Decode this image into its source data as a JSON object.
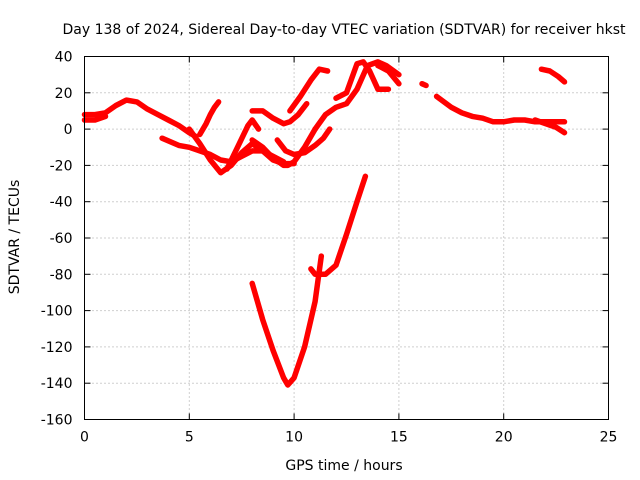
{
  "chart_data": {
    "type": "line",
    "title": "Day 138 of 2024, Sidereal Day-to-day VTEC variation (SDTVAR) for receiver hkst",
    "xlabel": "GPS time / hours",
    "ylabel": "SDTVAR / TECUs",
    "xlim": [
      0,
      25
    ],
    "ylim": [
      -160,
      40
    ],
    "xticks": [
      0,
      5,
      10,
      15,
      20,
      25
    ],
    "yticks": [
      -160,
      -140,
      -120,
      -100,
      -80,
      -60,
      -40,
      -20,
      0,
      20,
      40
    ],
    "xtick_labels": [
      "0",
      "5",
      "10",
      "15",
      "20",
      "25"
    ],
    "ytick_labels": [
      "-160",
      "-140",
      "-120",
      "-100",
      "-80",
      "-60",
      "-40",
      "-20",
      "0",
      "20",
      "40"
    ],
    "grid": true,
    "color": "#ff0000",
    "series": [
      {
        "name": "trace-1",
        "x": [
          0.0,
          0.5,
          1.0,
          1.5,
          2.0,
          2.5,
          3.0,
          3.5,
          4.0,
          4.5,
          5.0,
          5.3
        ],
        "y": [
          8,
          8,
          9,
          13,
          16,
          15,
          11,
          8,
          5,
          2,
          -2,
          -4
        ]
      },
      {
        "name": "trace-2",
        "x": [
          0.0,
          0.5,
          1.0
        ],
        "y": [
          5,
          5,
          7
        ]
      },
      {
        "name": "trace-3",
        "x": [
          5.0,
          5.5,
          6.0,
          6.5,
          7.0,
          7.5,
          8.0,
          8.5,
          9.0,
          9.5,
          10.0
        ],
        "y": [
          0,
          -8,
          -17,
          -24,
          -20,
          -13,
          -8,
          -12,
          -17,
          -19,
          -19
        ]
      },
      {
        "name": "trace-4",
        "x": [
          3.7,
          4.5,
          5.0,
          5.5,
          6.0,
          6.5,
          7.0,
          7.5,
          8.0,
          8.5,
          9.0,
          9.5
        ],
        "y": [
          -5,
          -9,
          -10,
          -12,
          -14,
          -17,
          -18,
          -15,
          -12,
          -12,
          -15,
          -18
        ]
      },
      {
        "name": "trace-5",
        "x": [
          5.5,
          5.8,
          6.0,
          6.2,
          6.4
        ],
        "y": [
          -3,
          3,
          8,
          12,
          15
        ]
      },
      {
        "name": "trace-6",
        "x": [
          6.8,
          7.3,
          7.8,
          8.0,
          8.3
        ],
        "y": [
          -22,
          -10,
          2,
          5,
          0
        ]
      },
      {
        "name": "trace-7",
        "x": [
          8.0,
          8.5,
          9.0,
          9.5,
          9.7,
          10.0,
          10.5,
          11.0
        ],
        "y": [
          -6,
          -10,
          -16,
          -20,
          -20,
          -18,
          -10,
          0
        ]
      },
      {
        "name": "trace-8",
        "x": [
          8.0,
          8.5,
          9.0,
          9.5,
          9.8,
          10.2,
          10.6
        ],
        "y": [
          10,
          10,
          6,
          3,
          4,
          8,
          14
        ]
      },
      {
        "name": "trace-9",
        "x": [
          9.2,
          9.6,
          10.0,
          10.5,
          11.0,
          11.4,
          11.7
        ],
        "y": [
          -6,
          -12,
          -14,
          -13,
          -9,
          -5,
          0
        ]
      },
      {
        "name": "trace-10",
        "x": [
          9.8,
          10.3,
          10.8,
          11.2,
          11.6
        ],
        "y": [
          10,
          18,
          27,
          33,
          32
        ]
      },
      {
        "name": "trace-11",
        "x": [
          11.0,
          11.5,
          12.0,
          12.5,
          13.0,
          13.5,
          14.0,
          14.4,
          15.0
        ],
        "y": [
          0,
          8,
          12,
          14,
          22,
          35,
          37,
          35,
          30
        ]
      },
      {
        "name": "trace-12",
        "x": [
          12.0,
          12.5,
          13.0,
          13.3,
          13.6,
          14.0,
          14.5
        ],
        "y": [
          17,
          20,
          36,
          37,
          32,
          22,
          22
        ]
      },
      {
        "name": "trace-13",
        "x": [
          14.0,
          14.5,
          15.0
        ],
        "y": [
          35,
          32,
          25
        ]
      },
      {
        "name": "trace-14",
        "x": [
          16.1,
          16.3
        ],
        "y": [
          25,
          24
        ]
      },
      {
        "name": "trace-15",
        "x": [
          16.8,
          17.5,
          18.0,
          18.5,
          19.0,
          19.5,
          20.0,
          20.5,
          21.0,
          21.5,
          22.0,
          22.5,
          22.9
        ],
        "y": [
          18,
          12,
          9,
          7,
          6,
          4,
          4,
          5,
          5,
          4,
          4,
          4,
          4
        ]
      },
      {
        "name": "trace-16",
        "x": [
          21.5,
          22.0,
          22.5,
          22.9
        ],
        "y": [
          5,
          3,
          1,
          -2
        ]
      },
      {
        "name": "trace-17",
        "x": [
          21.8,
          22.2,
          22.6,
          22.9
        ],
        "y": [
          33,
          32,
          29,
          26
        ]
      },
      {
        "name": "trace-18",
        "x": [
          8.0,
          8.5,
          9.0,
          9.5,
          9.7,
          10.0,
          10.5,
          11.0,
          11.3
        ],
        "y": [
          -85,
          -105,
          -122,
          -137,
          -141,
          -137,
          -120,
          -95,
          -70
        ]
      },
      {
        "name": "trace-19",
        "x": [
          10.8,
          11.0,
          11.5,
          12.0,
          12.5,
          13.0,
          13.4
        ],
        "y": [
          -77,
          -80,
          -80,
          -75,
          -58,
          -40,
          -26
        ]
      }
    ]
  }
}
